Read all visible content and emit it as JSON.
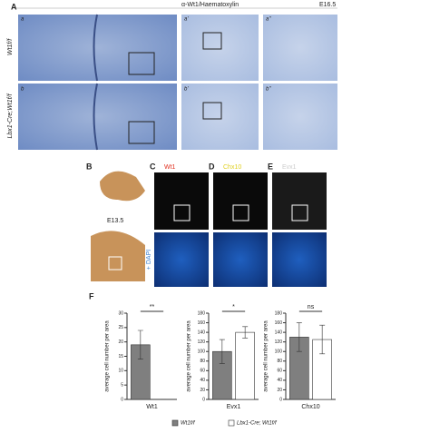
{
  "figure": {
    "panel_labels": [
      "A",
      "B",
      "C",
      "D",
      "E",
      "F"
    ],
    "stain_title": "α-Wt1/Haematoxylin",
    "stage": "E16.5",
    "row_labels": [
      "Wt1f/f",
      "Lbx1-Cre;Wt1f/f"
    ],
    "sublabels": [
      "a",
      "a'",
      "a''",
      "b",
      "b'",
      "b''"
    ],
    "b_stage": "E13.5",
    "markers": [
      "Wt1",
      "Chx10",
      "Evx1"
    ],
    "dapi": "+ DAPI"
  },
  "chart_data": [
    {
      "type": "bar",
      "ylabel": "average cell number per area",
      "categories": [
        "Wt1"
      ],
      "series": [
        {
          "name": "Wt1f/f",
          "color": "#7f7f7f",
          "values": [
            19
          ],
          "errors": [
            5
          ]
        },
        {
          "name": "Lbx1-Cre; Wt1f/f",
          "color": "#ffffff",
          "values": [
            0
          ],
          "errors": [
            0
          ]
        }
      ],
      "annotation": "**",
      "ylim": [
        0,
        30
      ],
      "yticks": [
        0,
        5,
        10,
        15,
        20,
        25,
        30
      ]
    },
    {
      "type": "bar",
      "ylabel": "average cell number per area",
      "categories": [
        "Evx1"
      ],
      "series": [
        {
          "name": "Wt1f/f",
          "color": "#7f7f7f",
          "values": [
            100
          ],
          "errors": [
            25
          ]
        },
        {
          "name": "Lbx1-Cre; Wt1f/f",
          "color": "#ffffff",
          "values": [
            140
          ],
          "errors": [
            12
          ]
        }
      ],
      "annotation": "*",
      "ylim": [
        0,
        180
      ],
      "yticks": [
        0,
        20,
        40,
        60,
        80,
        100,
        120,
        140,
        160,
        180
      ]
    },
    {
      "type": "bar",
      "ylabel": "average cell number per area",
      "categories": [
        "Chx10"
      ],
      "series": [
        {
          "name": "Wt1f/f",
          "color": "#7f7f7f",
          "values": [
            130
          ],
          "errors": [
            30
          ]
        },
        {
          "name": "Lbx1-Cre; Wt1f/f",
          "color": "#ffffff",
          "values": [
            125
          ],
          "errors": [
            30
          ]
        }
      ],
      "annotation": "ns",
      "ylim": [
        0,
        180
      ],
      "yticks": [
        0,
        20,
        40,
        60,
        80,
        100,
        120,
        140,
        160,
        180
      ]
    }
  ]
}
